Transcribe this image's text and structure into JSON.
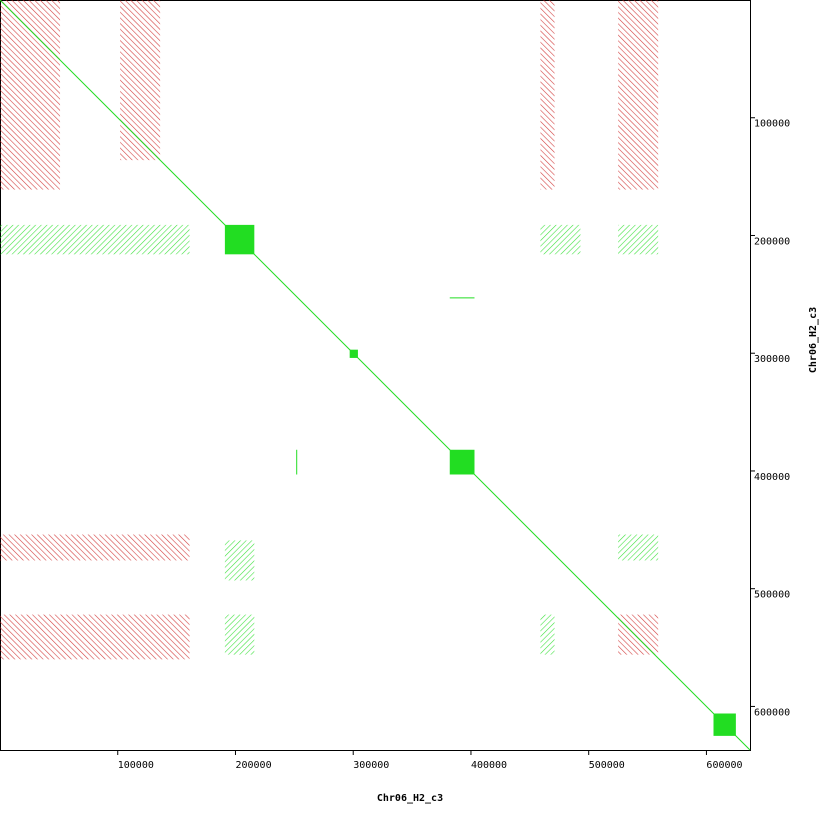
{
  "chart_data": {
    "type": "dotplot",
    "x_label": "Chr06_H2_c3",
    "y_label": "Chr06_H2_c3",
    "xlim": [
      0,
      637000
    ],
    "ylim": [
      0,
      637000
    ],
    "xticks": [
      100000,
      200000,
      300000,
      400000,
      500000,
      600000
    ],
    "yticks": [
      100000,
      200000,
      300000,
      400000,
      500000,
      600000
    ],
    "forward_color": "#22dd22",
    "reverse_color": "#cc2222",
    "diagonal": [
      0,
      637000
    ],
    "blocks": [
      {
        "x": [
          191000,
          216000
        ],
        "y": [
          191000,
          216000
        ]
      },
      {
        "x": [
          297000,
          304000
        ],
        "y": [
          297000,
          304000
        ]
      },
      {
        "x": [
          382000,
          403000
        ],
        "y": [
          382000,
          403000
        ]
      },
      {
        "x": [
          606000,
          625000
        ],
        "y": [
          606000,
          625000
        ]
      }
    ],
    "segments": [
      {
        "x": [
          382000,
          403000
        ],
        "y": [
          253000,
          253000
        ]
      },
      {
        "x": [
          252000,
          252000
        ],
        "y": [
          382000,
          403000
        ]
      }
    ],
    "clusters": [
      {
        "x": [
          0,
          51000
        ],
        "y": [
          0,
          161000
        ],
        "strand": "reverse"
      },
      {
        "x": [
          102000,
          136000
        ],
        "y": [
          0,
          136000
        ],
        "strand": "reverse"
      },
      {
        "x": [
          459000,
          471000
        ],
        "y": [
          0,
          161000
        ],
        "strand": "reverse"
      },
      {
        "x": [
          525000,
          559000
        ],
        "y": [
          0,
          161000
        ],
        "strand": "reverse"
      },
      {
        "x": [
          0,
          161000
        ],
        "y": [
          454000,
          476000
        ],
        "strand": "reverse"
      },
      {
        "x": [
          0,
          161000
        ],
        "y": [
          522000,
          560000
        ],
        "strand": "reverse"
      },
      {
        "x": [
          525000,
          559000
        ],
        "y": [
          454000,
          476000
        ],
        "strand": "forward"
      },
      {
        "x": [
          525000,
          559000
        ],
        "y": [
          522000,
          556000
        ],
        "strand": "reverse"
      },
      {
        "x": [
          459000,
          471000
        ],
        "y": [
          522000,
          556000
        ],
        "strand": "forward"
      },
      {
        "x": [
          191000,
          216000
        ],
        "y": [
          459000,
          493000
        ],
        "strand": "forward"
      },
      {
        "x": [
          191000,
          216000
        ],
        "y": [
          522000,
          556000
        ],
        "strand": "forward"
      },
      {
        "x": [
          459000,
          493000
        ],
        "y": [
          191000,
          216000
        ],
        "strand": "forward"
      },
      {
        "x": [
          525000,
          559000
        ],
        "y": [
          191000,
          216000
        ],
        "strand": "forward"
      },
      {
        "x": [
          0,
          161000
        ],
        "y": [
          191000,
          216000
        ],
        "strand": "forward"
      }
    ]
  }
}
